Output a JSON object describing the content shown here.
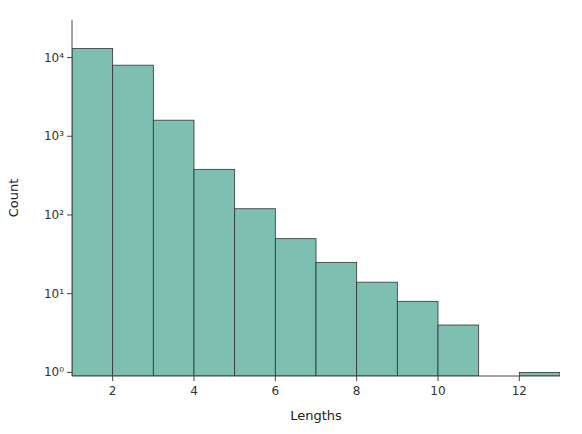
{
  "chart_data": {
    "type": "bar",
    "x": [
      1,
      2,
      3,
      4,
      5,
      6,
      7,
      8,
      9,
      10,
      12
    ],
    "values": [
      13000,
      8000,
      1600,
      380,
      120,
      50,
      25,
      14,
      8,
      4,
      1
    ],
    "color": "#7dbfb0",
    "xlabel": "Lengths",
    "ylabel": "Count",
    "log": "y",
    "xlim": [
      1,
      13
    ],
    "ylim": [
      0.9,
      30000
    ],
    "xticks": [
      2,
      4,
      6,
      8,
      10,
      12
    ],
    "yticks": [
      {
        "value": 1,
        "label": "10⁰"
      },
      {
        "value": 10,
        "label": "10¹"
      },
      {
        "value": 100,
        "label": "10²"
      },
      {
        "value": 1000,
        "label": "10³"
      },
      {
        "value": 10000,
        "label": "10⁴"
      }
    ],
    "grid": false
  }
}
